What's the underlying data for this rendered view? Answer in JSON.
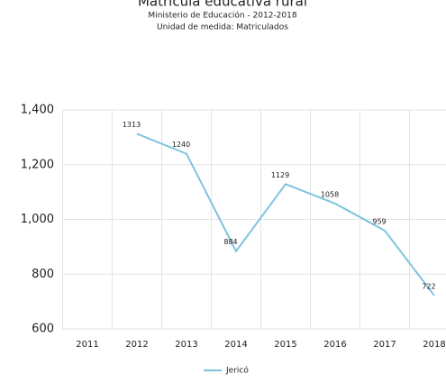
{
  "chart_data": {
    "type": "line",
    "title": "Matrícula educativa rural",
    "subtitle": [
      "Ministerio de Educación - 2012-2018",
      "Unidad de medida: Matriculados"
    ],
    "categories": [
      "2011",
      "2012",
      "2013",
      "2014",
      "2015",
      "2016",
      "2017",
      "2018"
    ],
    "series": [
      {
        "name": "Jericó",
        "color": "#7ec3dd",
        "values": [
          null,
          1313,
          1240,
          884,
          1129,
          1058,
          959,
          722
        ]
      }
    ],
    "ylim": [
      600,
      1400
    ],
    "yticks": [
      600,
      800,
      {
        "value": 1000,
        "label": "1,000"
      },
      {
        "value": 1200,
        "label": "1,200"
      },
      {
        "value": 1400,
        "label": "1,400"
      }
    ],
    "grid": true
  }
}
